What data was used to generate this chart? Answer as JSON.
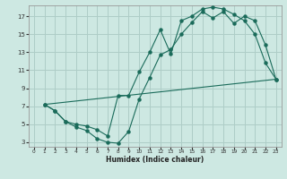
{
  "xlabel": "Humidex (Indice chaleur)",
  "bg_color": "#cde8e2",
  "grid_color": "#aecdc7",
  "line_color": "#1a6b5a",
  "xlim": [
    -0.5,
    23.5
  ],
  "ylim": [
    2.5,
    18.2
  ],
  "xticks": [
    0,
    1,
    2,
    3,
    4,
    5,
    6,
    7,
    8,
    9,
    10,
    11,
    12,
    13,
    14,
    15,
    16,
    17,
    18,
    19,
    20,
    21,
    22,
    23
  ],
  "yticks": [
    3,
    5,
    7,
    9,
    11,
    13,
    15,
    17
  ],
  "line1_x": [
    1,
    2,
    3,
    4,
    5,
    6,
    7,
    8,
    9,
    10,
    11,
    12,
    13,
    14,
    15,
    16,
    17,
    18,
    19,
    20,
    21,
    22,
    23
  ],
  "line1_y": [
    7.2,
    6.5,
    5.3,
    4.7,
    4.3,
    3.4,
    3.0,
    2.9,
    4.2,
    7.8,
    10.2,
    12.7,
    13.3,
    15.0,
    16.3,
    17.5,
    16.8,
    17.5,
    16.2,
    17.0,
    16.5,
    13.8,
    10.0
  ],
  "line2_x": [
    1,
    2,
    3,
    4,
    5,
    6,
    7,
    8,
    9,
    10,
    11,
    12,
    13,
    14,
    15,
    16,
    17,
    18,
    19,
    20,
    21,
    22,
    23
  ],
  "line2_y": [
    7.2,
    6.5,
    5.3,
    5.0,
    4.8,
    4.4,
    3.7,
    8.2,
    8.2,
    10.8,
    13.0,
    15.5,
    12.8,
    16.5,
    17.0,
    17.8,
    18.0,
    17.8,
    17.2,
    16.5,
    15.0,
    11.8,
    10.0
  ],
  "line3_x": [
    1,
    23
  ],
  "line3_y": [
    7.2,
    10.0
  ]
}
